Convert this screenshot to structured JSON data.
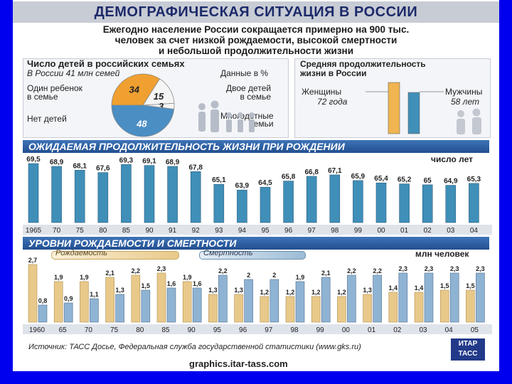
{
  "header": {
    "title": "ДЕМОГРАФИЧЕСКАЯ СИТУАЦИЯ В РОССИИ"
  },
  "intro": {
    "lines": [
      "Ежегодно население России сокращается примерно на 900 тыс.",
      "человек за счет низкой рождаемости, высокой смертности",
      "и небольшой продолжительности жизни"
    ]
  },
  "families": {
    "title": "Число детей в российских семьях",
    "subtitle": "В России 41 млн семей",
    "units": "Данные в %",
    "label_one": "Один ребенок\nв семье",
    "label_two": "Двое детей\nв семье",
    "label_none": "Нет детей",
    "label_many": "Многодетные\nсемьи"
  },
  "life": {
    "title": "Средняя продолжительность\nжизни в России",
    "women_label": "Женщины",
    "women_value": "72 года",
    "men_label": "Мужчины",
    "men_value": "58 лет"
  },
  "expectancy": {
    "title": "ОЖИДАЕМАЯ ПРОДОЛЖИТЕЛЬНОСТЬ ЖИЗНИ ПРИ РОЖДЕНИИ",
    "units": "число лет"
  },
  "rates": {
    "title": "УРОВНИ РОЖДАЕМОСТИ И СМЕРТНОСТИ",
    "units": "млн человек",
    "legend_births": "Рождаемость",
    "legend_deaths": "Смертность"
  },
  "footer": {
    "source": "Источник: ТАСС Досье, Федеральная служба государственной статистики (www.gks.ru)",
    "site": "graphics.itar-tass.com",
    "logo": "ИТАР ТАСС"
  },
  "colors": {
    "title_bg": "#c8ccd4",
    "section_blue": "#2a5ea8",
    "bar_blue": "#3f8fb8",
    "bar_tan": "#e8c98a",
    "pie_orange": "#f0a030",
    "pie_blue": "#4a8ec4"
  },
  "chart_data": [
    {
      "type": "pie",
      "title": "Число детей в российских семьях",
      "values": [
        34,
        15,
        3,
        48
      ],
      "categories": [
        "Один ребенок в семье",
        "Двое детей в семье",
        "Многодетные семьи",
        "Нет детей"
      ]
    },
    {
      "type": "bar",
      "title": "Средняя продолжительность жизни в России",
      "categories": [
        "Женщины",
        "Мужчины"
      ],
      "values": [
        72,
        58
      ]
    },
    {
      "type": "bar",
      "title": "ОЖИДАЕМАЯ ПРОДОЛЖИТЕЛЬНОСТЬ ЖИЗНИ ПРИ РОЖДЕНИИ",
      "ylabel": "число лет",
      "categories": [
        "1965",
        "70",
        "75",
        "80",
        "85",
        "90",
        "91",
        "92",
        "93",
        "94",
        "95",
        "96",
        "97",
        "98",
        "99",
        "00",
        "01",
        "02",
        "03",
        "04"
      ],
      "values": [
        69.5,
        68.9,
        68.1,
        67.6,
        69.3,
        69.1,
        68.9,
        67.8,
        65.1,
        63.9,
        64.5,
        65.8,
        66.8,
        67.1,
        65.9,
        65.4,
        65.2,
        65,
        64.9,
        65.3
      ],
      "value_labels": [
        "69,5",
        "68,9",
        "68,1",
        "67,6",
        "69,3",
        "69,1",
        "68,9",
        "67,8",
        "65,1",
        "63,9",
        "64,5",
        "65,8",
        "66,8",
        "67,1",
        "65,9",
        "65,4",
        "65,2",
        "65",
        "64,9",
        "65,3"
      ]
    },
    {
      "type": "bar",
      "title": "УРОВНИ РОЖДАЕМОСТИ И СМЕРТНОСТИ",
      "ylabel": "млн человек",
      "categories": [
        "1960",
        "65",
        "70",
        "75",
        "80",
        "85",
        "90",
        "95",
        "96",
        "97",
        "98",
        "99",
        "00",
        "01",
        "02",
        "03",
        "04",
        "05"
      ],
      "series": [
        {
          "name": "Рождаемость",
          "values": [
            2.7,
            1.9,
            1.9,
            2.1,
            2.2,
            2.3,
            1.9,
            1.3,
            1.3,
            1.2,
            1.2,
            1.2,
            1.2,
            1.3,
            1.4,
            1.4,
            1.5,
            1.5
          ],
          "labels": [
            "2,7",
            "1,9",
            "1,9",
            "2,1",
            "2,2",
            "2,3",
            "1,9",
            "1,3",
            "1,3",
            "1,2",
            "1,2",
            "1,2",
            "1,2",
            "1,3",
            "1,4",
            "1,4",
            "1,5",
            "1,5"
          ]
        },
        {
          "name": "Смертность",
          "values": [
            0.8,
            0.9,
            1.1,
            1.3,
            1.5,
            1.6,
            1.6,
            2.2,
            2,
            2,
            1.9,
            2.1,
            2.2,
            2.2,
            2.3,
            2.3,
            2.3,
            2.3
          ],
          "labels": [
            "0,8",
            "0,9",
            "1,1",
            "1,3",
            "1,5",
            "1,6",
            "1,6",
            "2,2",
            "2",
            "2",
            "1,9",
            "2,1",
            "2,2",
            "2,2",
            "2,3",
            "2,3",
            "2,3",
            "2,3"
          ]
        }
      ]
    }
  ]
}
